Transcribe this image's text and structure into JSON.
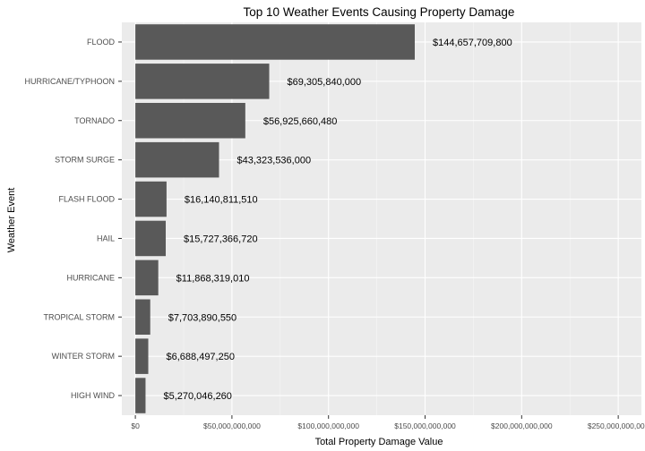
{
  "chart_data": {
    "type": "bar",
    "orientation": "horizontal",
    "title": "Top 10 Weather Events Causing Property Damage",
    "xlabel": "Total Property Damage Value",
    "ylabel": "Weather Event",
    "categories": [
      "FLOOD",
      "HURRICANE/TYPHOON",
      "TORNADO",
      "STORM SURGE",
      "FLASH FLOOD",
      "HAIL",
      "HURRICANE",
      "TROPICAL STORM",
      "WINTER STORM",
      "HIGH WIND"
    ],
    "values": [
      144657709800,
      69305840000,
      56925660480,
      43323536000,
      16140811510,
      15727366720,
      11868319010,
      7703890550,
      6688497250,
      5270046260
    ],
    "data_labels": [
      "$144,657,709,800",
      "$69,305,840,000",
      "$56,925,660,480",
      "$43,323,536,000",
      "$16,140,811,510",
      "$15,727,366,720",
      "$11,868,319,010",
      "$7,703,890,550",
      "$6,688,497,250",
      "$5,270,046,260"
    ],
    "xticks": [
      0,
      50000000000,
      100000000000,
      150000000000,
      200000000000,
      250000000000
    ],
    "xtick_labels": [
      "$0",
      "$50,000,000,000",
      "$100,000,000,000",
      "$150,000,000,000",
      "$200,000,000,000",
      "$250,000,000,000"
    ],
    "xlim": [
      -7000000000,
      262000000000
    ],
    "grid": true,
    "colors": {
      "bar": "#595959",
      "panel": "#ebebeb",
      "grid_major": "#ffffff"
    }
  }
}
